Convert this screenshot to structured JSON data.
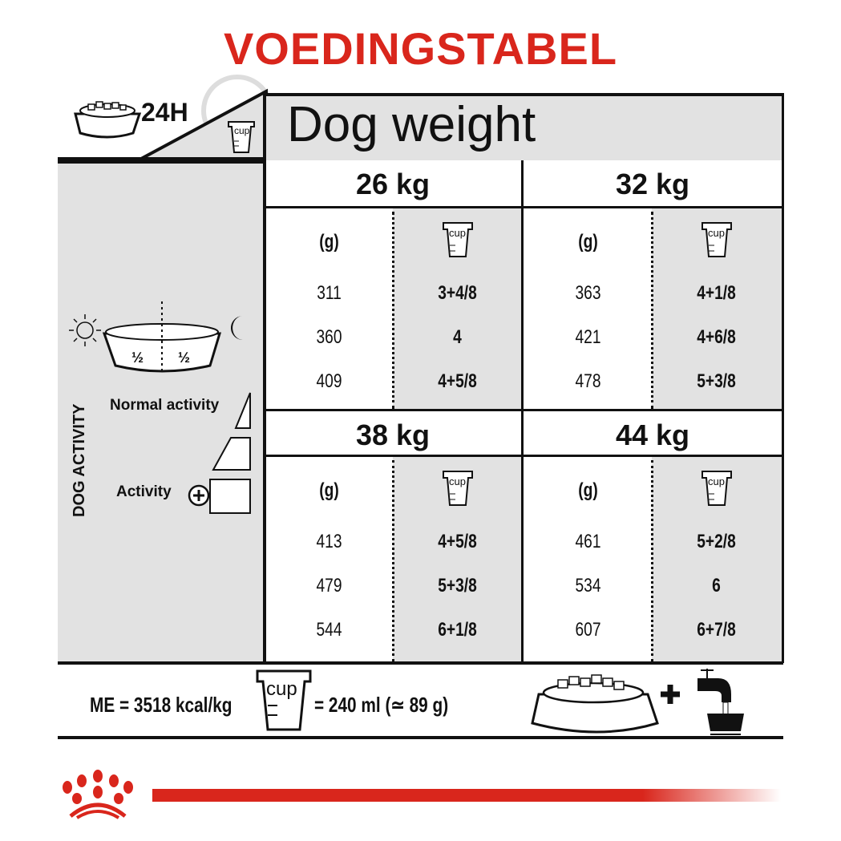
{
  "title": "VOEDINGSTABEL",
  "header": {
    "duration": "24H",
    "cup_label": "cup",
    "dog_weight": "Dog weight"
  },
  "left_panel": {
    "half_left": "½",
    "half_right": "½",
    "axis_label": "DOG ACTIVITY",
    "normal_activity": "Normal activity",
    "activity": "Activity"
  },
  "columns": {
    "grams": "(g)",
    "cup": "cup"
  },
  "blocks": [
    {
      "weight": "26 kg",
      "rows": [
        [
          "311",
          "3+4/8"
        ],
        [
          "360",
          "4"
        ],
        [
          "409",
          "4+5/8"
        ]
      ]
    },
    {
      "weight": "32 kg",
      "rows": [
        [
          "363",
          "4+1/8"
        ],
        [
          "421",
          "4+6/8"
        ],
        [
          "478",
          "5+3/8"
        ]
      ]
    },
    {
      "weight": "38 kg",
      "rows": [
        [
          "413",
          "4+5/8"
        ],
        [
          "479",
          "5+3/8"
        ],
        [
          "544",
          "6+1/8"
        ]
      ]
    },
    {
      "weight": "44 kg",
      "rows": [
        [
          "461",
          "5+2/8"
        ],
        [
          "534",
          "6"
        ],
        [
          "607",
          "6+7/8"
        ]
      ]
    }
  ],
  "footer": {
    "energy": "ME = 3518 kcal/kg",
    "cup_label": "cup",
    "cup_equiv": "= 240 ml (≃ 89 g)",
    "plus": "+"
  },
  "brand_color": "#d9261c"
}
